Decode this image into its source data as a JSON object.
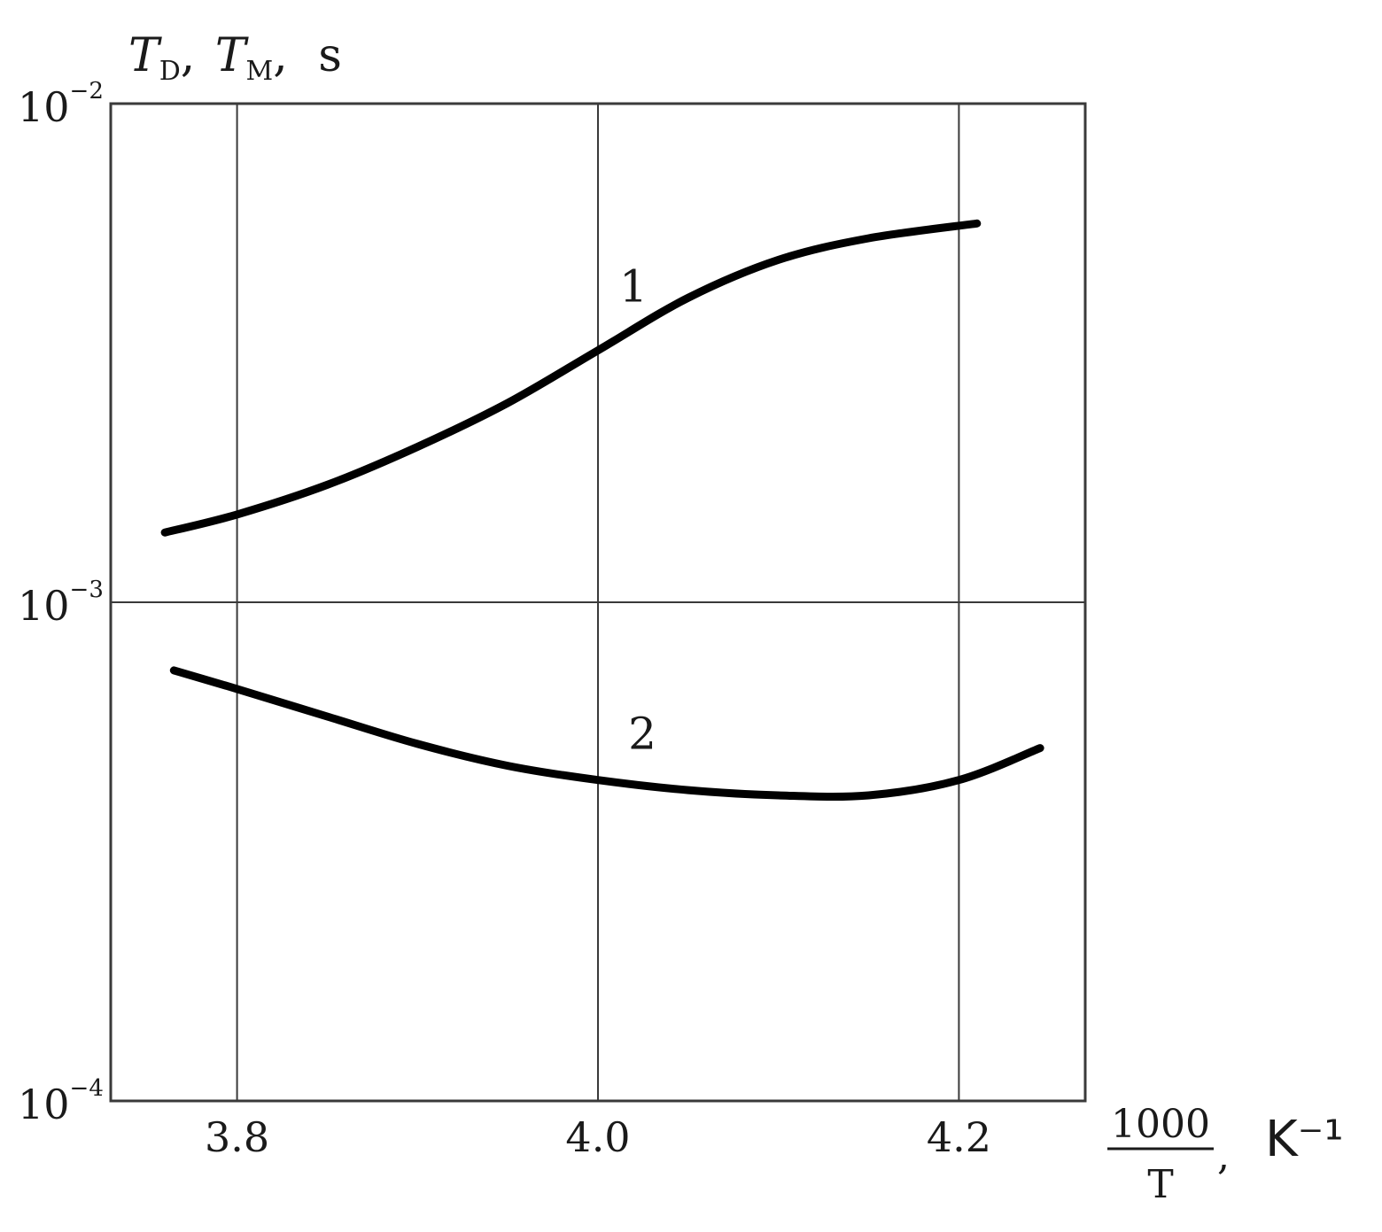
{
  "chart_data": {
    "type": "line",
    "y_scale": "log",
    "grid": true,
    "xlim": [
      3.73,
      4.27
    ],
    "ylim": [
      0.0001,
      0.01
    ],
    "x_ticks": [
      {
        "value": 3.8,
        "label": "3.8"
      },
      {
        "value": 4.0,
        "label": "4.0"
      },
      {
        "value": 4.2,
        "label": "4.2"
      }
    ],
    "y_ticks": [
      {
        "value": 0.01,
        "base": "10",
        "exp": "−2"
      },
      {
        "value": 0.001,
        "base": "10",
        "exp": "−3"
      },
      {
        "value": 0.0001,
        "base": "10",
        "exp": "−4"
      }
    ],
    "ylabel": {
      "t1": "T",
      "s1": "D",
      "sep1": ",",
      "t2": "T",
      "s2": "M",
      "sep2": ",",
      "unit": "s"
    },
    "xlabel": {
      "num": "1000",
      "den": "T",
      "comma": ",",
      "unit": "K⁻¹"
    },
    "series": [
      {
        "label": "1",
        "x": [
          3.76,
          3.8,
          3.85,
          3.9,
          3.95,
          4.0,
          4.05,
          4.1,
          4.15,
          4.21
        ],
        "y": [
          0.00138,
          0.0015,
          0.00172,
          0.00205,
          0.00251,
          0.0032,
          0.00408,
          0.00486,
          0.00537,
          0.00575
        ]
      },
      {
        "label": "2",
        "x": [
          3.765,
          3.8,
          3.85,
          3.9,
          3.95,
          4.0,
          4.05,
          4.1,
          4.15,
          4.2,
          4.245
        ],
        "y": [
          0.00073,
          0.00067,
          0.00059,
          0.00052,
          0.00047,
          0.00044,
          0.00042,
          0.00041,
          0.00041,
          0.00044,
          0.00051
        ]
      }
    ]
  }
}
